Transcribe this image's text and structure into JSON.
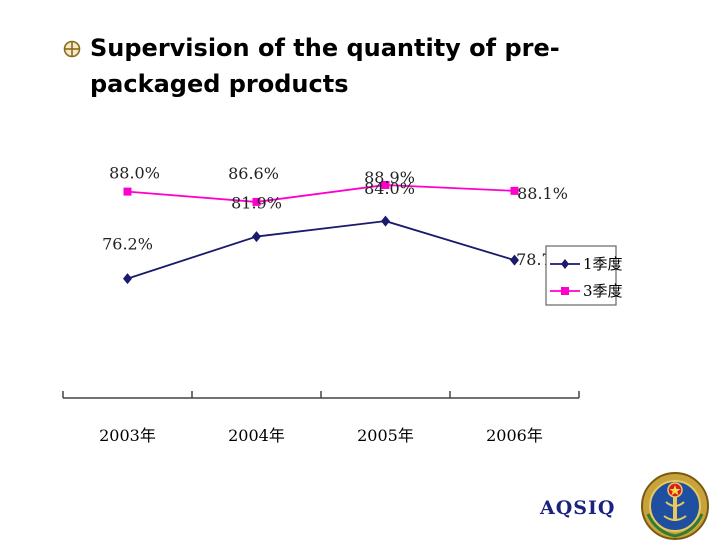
{
  "slide": {
    "title": "Supervision of the quantity of pre-packaged products",
    "brand": "AQSIQ",
    "bullet_icon": "circle-cross-bullet",
    "colors": {
      "series1": "#1a1a6e",
      "series2": "#ff00cc",
      "axis": "#444444",
      "brand": "#1a237e"
    }
  },
  "chart_data": {
    "type": "line",
    "categories": [
      "2003年",
      "2004年",
      "2005年",
      "2006年"
    ],
    "series": [
      {
        "name": "1季度",
        "values": [
          76.2,
          81.9,
          84.0,
          78.7
        ],
        "labels": [
          "76.2%",
          "81.9%",
          "84.0%",
          "78.7%"
        ],
        "color": "#1a1a6e",
        "marker": "diamond"
      },
      {
        "name": "3季度",
        "values": [
          88.0,
          86.6,
          88.9,
          88.1
        ],
        "labels": [
          "88.0%",
          "86.6%",
          "88.9%",
          "88.1%"
        ],
        "color": "#ff00cc",
        "marker": "square"
      }
    ],
    "ylim": [
      60,
      95
    ],
    "grid": false,
    "legend": "right",
    "title": "",
    "xlabel": "",
    "ylabel": ""
  }
}
